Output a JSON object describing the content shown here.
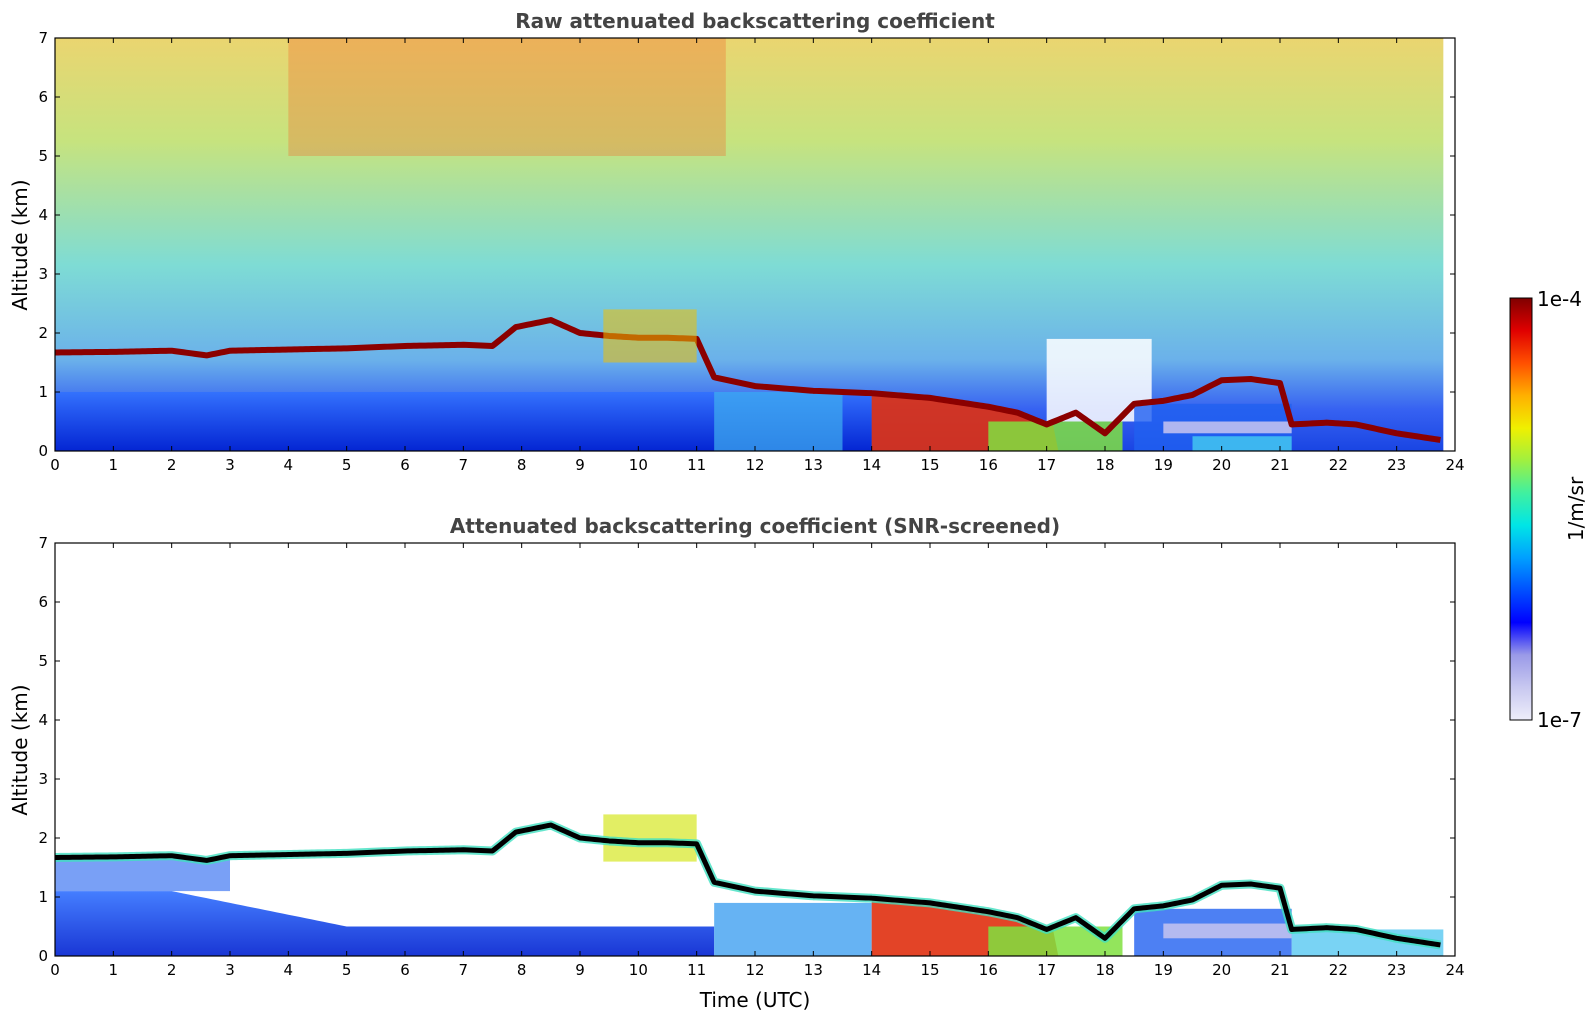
{
  "chart_data": [
    {
      "type": "heatmap",
      "title": "Raw attenuated backscattering coefficient",
      "xlabel": "",
      "ylabel": "Altitude (km)",
      "xlim": [
        0,
        24
      ],
      "ylim": [
        0,
        7
      ],
      "x_ticks": [
        "0",
        "1",
        "2",
        "3",
        "4",
        "5",
        "6",
        "7",
        "8",
        "9",
        "10",
        "11",
        "12",
        "13",
        "14",
        "15",
        "16",
        "17",
        "18",
        "19",
        "20",
        "21",
        "22",
        "23",
        "24"
      ],
      "y_ticks": [
        "0",
        "1",
        "2",
        "3",
        "4",
        "5",
        "6",
        "7"
      ],
      "grid": false,
      "cloud_layer": {
        "time": [
          0,
          1,
          2,
          2.6,
          3,
          4,
          5,
          6,
          7,
          7.5,
          7.9,
          8.5,
          9.0,
          9.5,
          10,
          10.5,
          11.0,
          11.3,
          12,
          13,
          14,
          15,
          16,
          16.5,
          17,
          17.5,
          18,
          18.5,
          19,
          19.5,
          20,
          20.5,
          21,
          21.2,
          21.8,
          22.3,
          23,
          23.8
        ],
        "altitude_km": [
          1.67,
          1.68,
          1.7,
          1.62,
          1.7,
          1.72,
          1.74,
          1.78,
          1.8,
          1.78,
          2.1,
          2.22,
          2.0,
          1.95,
          1.92,
          1.92,
          1.9,
          1.25,
          1.1,
          1.02,
          0.98,
          0.9,
          0.75,
          0.65,
          0.45,
          0.65,
          0.3,
          0.8,
          0.85,
          0.95,
          1.2,
          1.22,
          1.15,
          0.45,
          0.48,
          0.45,
          0.3,
          0.18
        ]
      }
    },
    {
      "type": "heatmap",
      "title": "Attenuated backscattering coefficient (SNR-screened)",
      "xlabel": "Time (UTC)",
      "ylabel": "Altitude (km)",
      "xlim": [
        0,
        24
      ],
      "ylim": [
        0,
        7
      ],
      "x_ticks": [
        "0",
        "1",
        "2",
        "3",
        "4",
        "5",
        "6",
        "7",
        "8",
        "9",
        "10",
        "11",
        "12",
        "13",
        "14",
        "15",
        "16",
        "17",
        "18",
        "19",
        "20",
        "21",
        "22",
        "23",
        "24"
      ],
      "y_ticks": [
        "0",
        "1",
        "2",
        "3",
        "4",
        "5",
        "6",
        "7"
      ],
      "grid": false
    }
  ],
  "colorbar": {
    "label": "1/m/sr",
    "max_label": "1e-4",
    "min_label": "1e-7",
    "colors": [
      "#eeeefa",
      "#c8c8f0",
      "#9a9ae8",
      "#0000ff",
      "#0050ff",
      "#00a0ff",
      "#00e6e6",
      "#40f0a0",
      "#a0f040",
      "#f0f000",
      "#ffb000",
      "#ff5000",
      "#e00000",
      "#800000"
    ]
  }
}
